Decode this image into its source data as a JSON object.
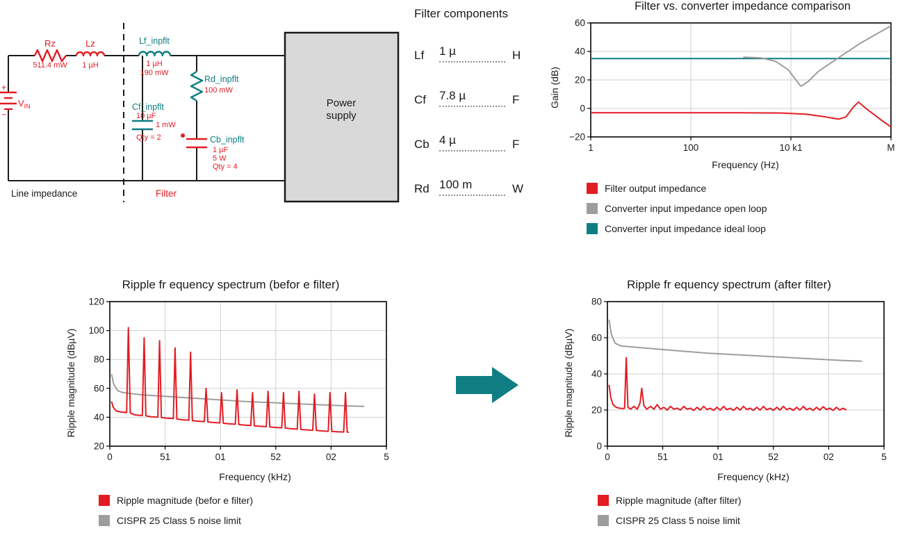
{
  "colors": {
    "red": "#e31b23",
    "teal": "#0f7e82",
    "gray": "#9d9d9d",
    "wire": "#1a1a1a",
    "box_fill": "#d9d9d9"
  },
  "schematic": {
    "rz": {
      "label": "Rz",
      "value": "511.4 mW"
    },
    "lz": {
      "label": "Lz",
      "value": "1 µH"
    },
    "lf": {
      "label": "Lf_inpflt",
      "value1": "1 µH",
      "value2": "190 mW"
    },
    "rd": {
      "label": "Rd_inpflt",
      "value": "100 mW"
    },
    "cf": {
      "label": "Cf_inpflt",
      "value1": "10 µF",
      "value2": "1 mW",
      "value3": "Qty = 2"
    },
    "cb": {
      "label": "Cb_inpflt",
      "value1": "1 µF",
      "value2": "5 W",
      "value3": "Qty = 4"
    },
    "vin": {
      "v": "V",
      "sub": "IN",
      "plus": "+",
      "minus": "−"
    },
    "power_supply_line1": "Power",
    "power_supply_line2": "supply",
    "line_impedance_label": "Line impedance",
    "filter_label": "Filter"
  },
  "components": {
    "title": "Filter components",
    "rows": [
      {
        "label": "Lf",
        "value": "1 µ",
        "unit": "H"
      },
      {
        "label": "Cf",
        "value": "7.8 µ",
        "unit": "F"
      },
      {
        "label": "Cb",
        "value": "4 µ",
        "unit": "F"
      },
      {
        "label": "Rd",
        "value": "100 m",
        "unit": "W"
      }
    ]
  },
  "chart_data": [
    {
      "type": "line",
      "title": "Filter vs. converter impedance comparison",
      "xlabel": "Frequency (Hz)",
      "ylabel": "Gain (dB)",
      "x_axis_note": "x values are log10 of frequency in Hz (log scale, 1 Hz to 1 MHz)",
      "xlim": [
        0,
        6
      ],
      "ylim": [
        -20,
        60
      ],
      "grid": true,
      "legend_position": "below-left",
      "xticks": [
        {
          "pos": 0,
          "label": "1"
        },
        {
          "pos": 2,
          "label": "100"
        },
        {
          "pos": 4,
          "label": "10 k1"
        },
        {
          "pos": 6,
          "label": "M"
        }
      ],
      "yticks": [
        {
          "pos": -20,
          "label": "−20"
        },
        {
          "pos": 0,
          "label": "0"
        },
        {
          "pos": 20,
          "label": "20"
        },
        {
          "pos": 40,
          "label": "40"
        },
        {
          "pos": 60,
          "label": "60"
        }
      ],
      "series": [
        {
          "name": "Converter input impedance ideal loop",
          "color": "#0f7e82",
          "points": [
            [
              0,
              35
            ],
            [
              6,
              35
            ]
          ]
        },
        {
          "name": "Converter input impedance open loop",
          "color": "#9d9d9d",
          "points": [
            [
              3.05,
              36
            ],
            [
              3.4,
              35.5
            ],
            [
              3.7,
              33
            ],
            [
              3.95,
              27
            ],
            [
              4.1,
              20
            ],
            [
              4.2,
              15.5
            ],
            [
              4.35,
              19
            ],
            [
              4.55,
              26
            ],
            [
              4.8,
              32
            ],
            [
              5.1,
              39
            ],
            [
              5.4,
              46
            ],
            [
              5.7,
              52
            ],
            [
              6,
              58
            ]
          ]
        },
        {
          "name": "Filter output impedance",
          "color": "#e31b23",
          "points": [
            [
              0,
              -3
            ],
            [
              1,
              -3
            ],
            [
              2,
              -3
            ],
            [
              3,
              -3
            ],
            [
              3.8,
              -3.2
            ],
            [
              4.3,
              -4
            ],
            [
              4.7,
              -6
            ],
            [
              4.95,
              -7.5
            ],
            [
              5.1,
              -6
            ],
            [
              5.25,
              1
            ],
            [
              5.35,
              4.5
            ],
            [
              5.5,
              0
            ],
            [
              5.65,
              -4
            ],
            [
              5.8,
              -8
            ],
            [
              6,
              -13
            ]
          ]
        }
      ]
    },
    {
      "type": "line",
      "title": "Ripple fr equency spectrum (befor e filter)",
      "xlabel": "Frequency (kHz)",
      "ylabel": "Ripple magnitude (dBµV)",
      "xlim": [
        0,
        25
      ],
      "ylim": [
        20,
        120
      ],
      "grid": true,
      "legend_position": "below-left",
      "xticks": [
        {
          "pos": 0,
          "label": "0"
        },
        {
          "pos": 5,
          "label": "51"
        },
        {
          "pos": 10,
          "label": "01"
        },
        {
          "pos": 15,
          "label": "52"
        },
        {
          "pos": 20,
          "label": "02"
        },
        {
          "pos": 25,
          "label": "5"
        }
      ],
      "yticks": [
        {
          "pos": 20,
          "label": "20"
        },
        {
          "pos": 40,
          "label": "40"
        },
        {
          "pos": 60,
          "label": "60"
        },
        {
          "pos": 80,
          "label": "80"
        },
        {
          "pos": 100,
          "label": "100"
        },
        {
          "pos": 120,
          "label": "120"
        }
      ],
      "series": [
        {
          "name": "CISPR 25 Class 5 noise limit",
          "color": "#9d9d9d",
          "points": [
            [
              0.15,
              70
            ],
            [
              0.35,
              63
            ],
            [
              0.7,
              58.5
            ],
            [
              1.2,
              57
            ],
            [
              3,
              55.5
            ],
            [
              6,
              54
            ],
            [
              9,
              52.5
            ],
            [
              12,
              51
            ],
            [
              15,
              50
            ],
            [
              18,
              49
            ],
            [
              21,
              48
            ],
            [
              23,
              47.5
            ]
          ]
        },
        {
          "name": "Ripple magnitude (befor e filter)",
          "color": "#e31b23",
          "points": [
            [
              0.15,
              51
            ],
            [
              0.3,
              47
            ],
            [
              0.55,
              44.5
            ],
            [
              0.9,
              43.8
            ],
            [
              1.3,
              43.4
            ],
            [
              1.52,
              43.2
            ],
            [
              1.68,
              102
            ],
            [
              1.85,
              43
            ],
            [
              2.2,
              41.8
            ],
            [
              2.6,
              41.4
            ],
            [
              2.94,
              41.2
            ],
            [
              3.1,
              95
            ],
            [
              3.26,
              41
            ],
            [
              3.7,
              40.4
            ],
            [
              4.34,
              40.1
            ],
            [
              4.5,
              93
            ],
            [
              4.66,
              39.8
            ],
            [
              5.1,
              39.4
            ],
            [
              5.74,
              39.1
            ],
            [
              5.9,
              88
            ],
            [
              6.06,
              38.8
            ],
            [
              6.5,
              38.3
            ],
            [
              7.14,
              38
            ],
            [
              7.3,
              85
            ],
            [
              7.46,
              37.7
            ],
            [
              7.9,
              37.3
            ],
            [
              8.54,
              37
            ],
            [
              8.7,
              60
            ],
            [
              8.86,
              36.8
            ],
            [
              9.3,
              36.4
            ],
            [
              9.94,
              36.1
            ],
            [
              10.1,
              57
            ],
            [
              10.26,
              35.9
            ],
            [
              10.7,
              35.5
            ],
            [
              11.34,
              35.2
            ],
            [
              11.5,
              59
            ],
            [
              11.66,
              35
            ],
            [
              12.1,
              34.6
            ],
            [
              12.74,
              34.3
            ],
            [
              12.9,
              57
            ],
            [
              13.06,
              34.1
            ],
            [
              13.5,
              33.8
            ],
            [
              14.14,
              33.5
            ],
            [
              14.3,
              58
            ],
            [
              14.46,
              33.3
            ],
            [
              14.9,
              33
            ],
            [
              15.54,
              32.7
            ],
            [
              15.7,
              57
            ],
            [
              15.86,
              32.5
            ],
            [
              16.3,
              32.1
            ],
            [
              16.94,
              31.8
            ],
            [
              17.1,
              58
            ],
            [
              17.26,
              31.6
            ],
            [
              17.7,
              31.3
            ],
            [
              18.34,
              31
            ],
            [
              18.5,
              56
            ],
            [
              18.66,
              30.9
            ],
            [
              19.1,
              30.6
            ],
            [
              19.74,
              30.3
            ],
            [
              19.9,
              57
            ],
            [
              20.06,
              30.2
            ],
            [
              20.5,
              30
            ],
            [
              21.14,
              29.8
            ],
            [
              21.3,
              57
            ],
            [
              21.46,
              29.7
            ],
            [
              21.6,
              29.6
            ]
          ]
        }
      ]
    },
    {
      "type": "line",
      "title": "Ripple fr equency spectrum (after filter)",
      "xlabel": "Frequency (kHz)",
      "ylabel": "Ripple magnitude (dBµV)",
      "xlim": [
        0,
        25
      ],
      "ylim": [
        0,
        80
      ],
      "grid": true,
      "legend_position": "below-left",
      "xticks": [
        {
          "pos": 0,
          "label": "0"
        },
        {
          "pos": 5,
          "label": "51"
        },
        {
          "pos": 10,
          "label": "01"
        },
        {
          "pos": 15,
          "label": "52"
        },
        {
          "pos": 20,
          "label": "02"
        },
        {
          "pos": 25,
          "label": "5"
        }
      ],
      "yticks": [
        {
          "pos": 0,
          "label": "0"
        },
        {
          "pos": 20,
          "label": "20"
        },
        {
          "pos": 40,
          "label": "40"
        },
        {
          "pos": 60,
          "label": "60"
        },
        {
          "pos": 80,
          "label": "80"
        }
      ],
      "series": [
        {
          "name": "CISPR 25 Class 5 noise limit",
          "color": "#9d9d9d",
          "points": [
            [
              0.15,
              70
            ],
            [
              0.35,
              62
            ],
            [
              0.7,
              57
            ],
            [
              1.2,
              55.5
            ],
            [
              3,
              54.5
            ],
            [
              6,
              53
            ],
            [
              9,
              51.5
            ],
            [
              12,
              50.5
            ],
            [
              15,
              49.5
            ],
            [
              18,
              48.5
            ],
            [
              21,
              47.5
            ],
            [
              23,
              47
            ]
          ]
        },
        {
          "name": "Ripple magnitude (after filter)",
          "color": "#e31b23",
          "points": [
            [
              0.15,
              34
            ],
            [
              0.3,
              27
            ],
            [
              0.5,
              23
            ],
            [
              0.8,
              21.5
            ],
            [
              1.1,
              21
            ],
            [
              1.4,
              20.8
            ],
            [
              1.55,
              21
            ],
            [
              1.7,
              49
            ],
            [
              1.85,
              21.5
            ],
            [
              2.1,
              20.5
            ],
            [
              2.4,
              22
            ],
            [
              2.7,
              20.5
            ],
            [
              2.95,
              24
            ],
            [
              3.1,
              32
            ],
            [
              3.3,
              22.5
            ],
            [
              3.55,
              20.5
            ],
            [
              3.9,
              22
            ],
            [
              4.2,
              20.5
            ],
            [
              4.5,
              23
            ],
            [
              4.8,
              20.5
            ],
            [
              5.1,
              21.5
            ],
            [
              5.4,
              20
            ],
            [
              5.7,
              22
            ],
            [
              6,
              20.5
            ],
            [
              6.3,
              21
            ],
            [
              6.6,
              20
            ],
            [
              6.9,
              22
            ],
            [
              7.2,
              20.5
            ],
            [
              7.5,
              21
            ],
            [
              7.8,
              19.8
            ],
            [
              8.1,
              21.5
            ],
            [
              8.4,
              20
            ],
            [
              8.7,
              22
            ],
            [
              9,
              20.3
            ],
            [
              9.3,
              21
            ],
            [
              9.6,
              19.8
            ],
            [
              9.9,
              21.5
            ],
            [
              10.2,
              20
            ],
            [
              10.5,
              22
            ],
            [
              10.8,
              20.2
            ],
            [
              11.1,
              21
            ],
            [
              11.4,
              19.8
            ],
            [
              11.7,
              21.5
            ],
            [
              12,
              20
            ],
            [
              12.3,
              22
            ],
            [
              12.6,
              20.3
            ],
            [
              12.9,
              21
            ],
            [
              13.2,
              19.8
            ],
            [
              13.5,
              21.5
            ],
            [
              13.8,
              20
            ],
            [
              14.1,
              22
            ],
            [
              14.4,
              20.2
            ],
            [
              14.7,
              21
            ],
            [
              15,
              19.8
            ],
            [
              15.3,
              21.5
            ],
            [
              15.6,
              20
            ],
            [
              15.9,
              22
            ],
            [
              16.2,
              20.3
            ],
            [
              16.5,
              21
            ],
            [
              16.8,
              19.8
            ],
            [
              17.1,
              21.5
            ],
            [
              17.4,
              20
            ],
            [
              17.7,
              22
            ],
            [
              18,
              20.2
            ],
            [
              18.3,
              21
            ],
            [
              18.6,
              19.8
            ],
            [
              18.9,
              21.5
            ],
            [
              19.2,
              20
            ],
            [
              19.5,
              21.8
            ],
            [
              19.8,
              20.3
            ],
            [
              20.1,
              21
            ],
            [
              20.4,
              19.8
            ],
            [
              20.7,
              21.5
            ],
            [
              21,
              20
            ],
            [
              21.3,
              21
            ],
            [
              21.6,
              20
            ]
          ]
        }
      ]
    }
  ]
}
